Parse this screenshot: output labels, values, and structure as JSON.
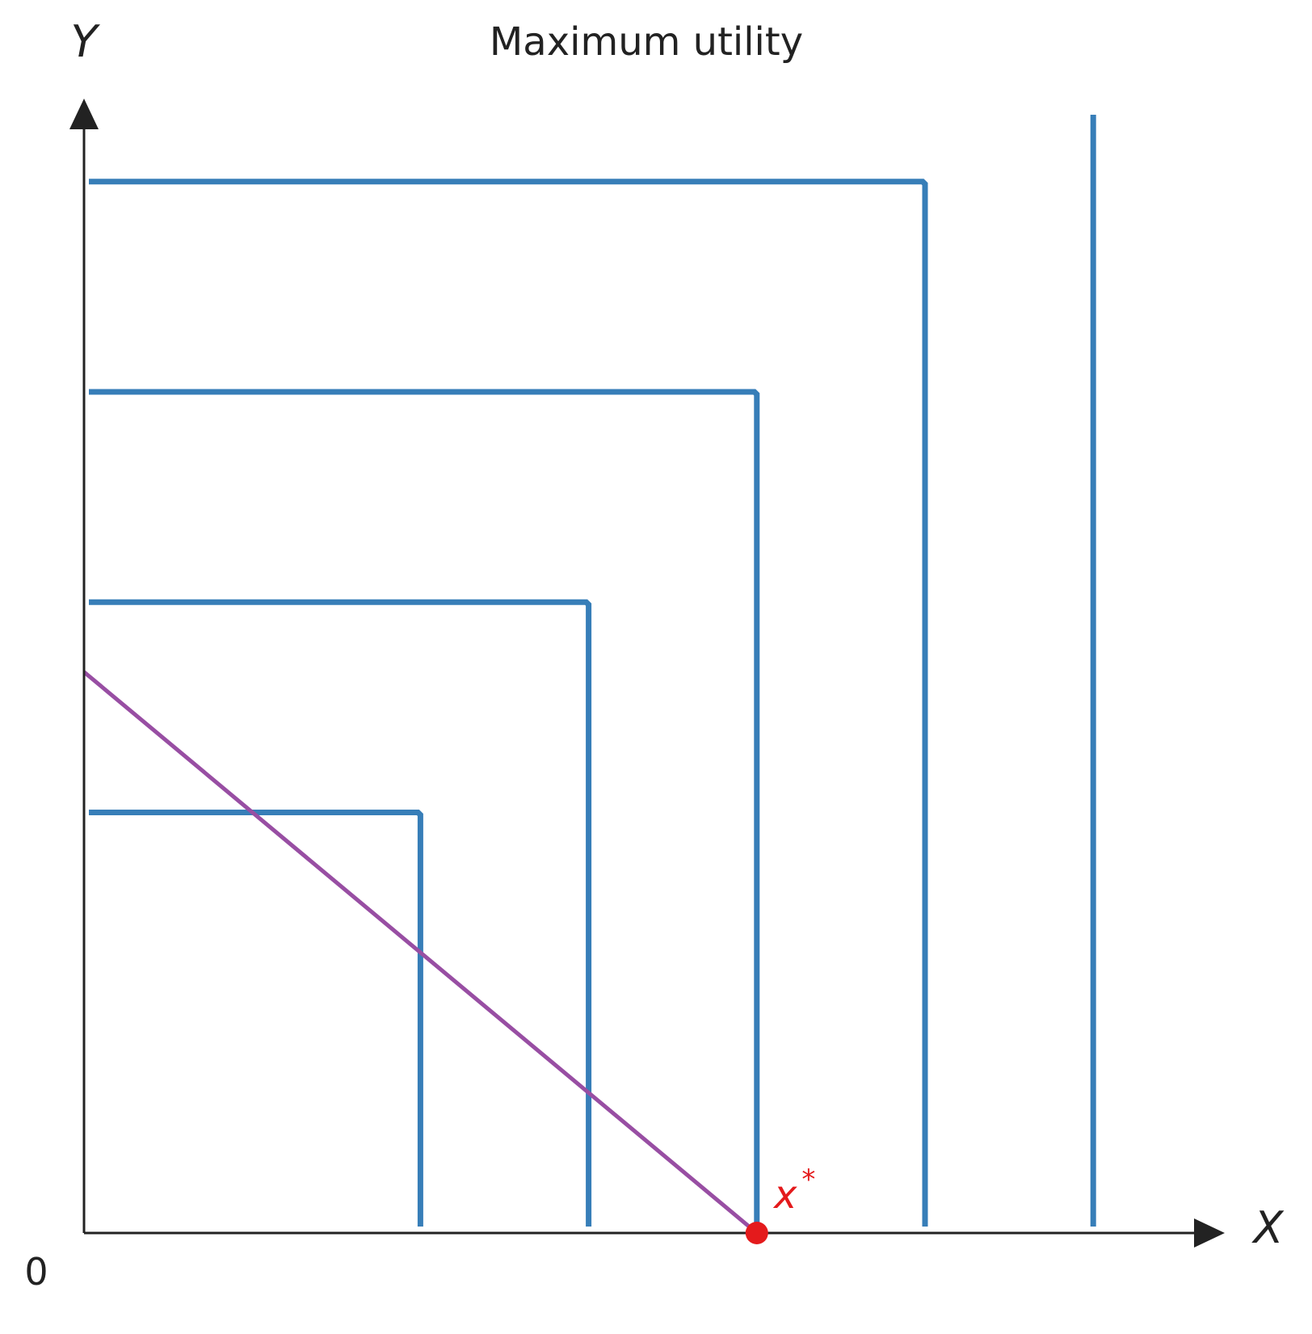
{
  "title": "Maximum utility",
  "axes": {
    "x_label": "X",
    "y_label": "Y",
    "origin_label": "0"
  },
  "colors": {
    "axis": "#222222",
    "indifference_curve": "#377eb8",
    "budget_line": "#984ea3",
    "optimum": "#e41a1c"
  },
  "chart_data": {
    "type": "line",
    "xlim": [
      0,
      13.2
    ],
    "ylim": [
      0,
      13.2
    ],
    "indifference_curves": [
      {
        "kink": [
          4,
          5
        ]
      },
      {
        "kink": [
          6,
          7.5
        ]
      },
      {
        "kink": [
          8,
          10
        ]
      },
      {
        "kink": [
          10,
          12.5
        ]
      },
      {
        "kink": [
          12,
          15
        ]
      }
    ],
    "budget_line": {
      "from": [
        0,
        6.67
      ],
      "to": [
        8,
        0
      ]
    },
    "optimum": {
      "point": [
        8,
        0
      ],
      "label": "x",
      "label_sup": "*"
    }
  }
}
